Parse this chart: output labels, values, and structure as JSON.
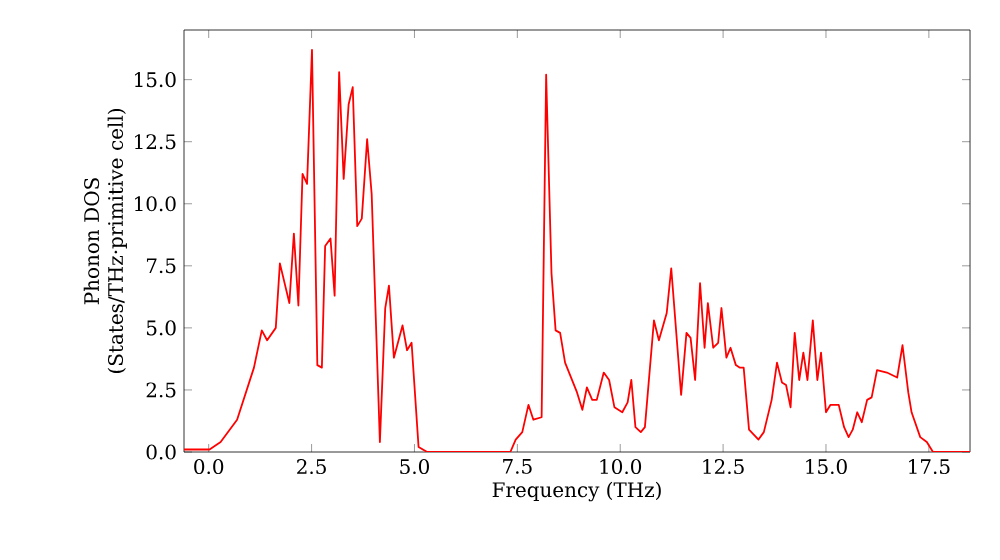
{
  "chart_data": {
    "type": "line",
    "xlabel": "Frequency (THz)",
    "ylabel": "Phonon DOS (States/THz·primitive cell)",
    "xlim": [
      -0.6,
      18.5
    ],
    "ylim": [
      0,
      17
    ],
    "xticks": [
      {
        "value": 0,
        "label": "0.0"
      },
      {
        "value": 2.5,
        "label": "2.5"
      },
      {
        "value": 5,
        "label": "5.0"
      },
      {
        "value": 7.5,
        "label": "7.5"
      },
      {
        "value": 10,
        "label": "10.0"
      },
      {
        "value": 12.5,
        "label": "12.5"
      },
      {
        "value": 15,
        "label": "15.0"
      },
      {
        "value": 17.5,
        "label": "17.5"
      }
    ],
    "yticks": [
      {
        "value": 0,
        "label": "0.0"
      },
      {
        "value": 2.5,
        "label": "2.5"
      },
      {
        "value": 5,
        "label": "5.0"
      },
      {
        "value": 7.5,
        "label": "7.5"
      },
      {
        "value": 10,
        "label": "10.0"
      },
      {
        "value": 12.5,
        "label": "12.5"
      },
      {
        "value": 15,
        "label": "15.0"
      }
    ],
    "grid": false,
    "marker": "none",
    "line_style": "solid",
    "series": [
      {
        "color": "#ff0000",
        "x": [
          -0.6,
          0.02,
          0.29,
          0.69,
          1.1,
          1.29,
          1.42,
          1.63,
          1.73,
          1.96,
          2.07,
          2.18,
          2.28,
          2.39,
          2.51,
          2.64,
          2.75,
          2.83,
          2.96,
          3.06,
          3.17,
          3.28,
          3.4,
          3.5,
          3.61,
          3.72,
          3.85,
          3.96,
          4.16,
          4.29,
          4.38,
          4.5,
          4.71,
          4.82,
          4.93,
          5.1,
          5.31,
          7.33,
          7.46,
          7.62,
          7.77,
          7.89,
          8.09,
          8.2,
          8.33,
          8.43,
          8.54,
          8.66,
          8.95,
          9.08,
          9.19,
          9.32,
          9.43,
          9.6,
          9.73,
          9.86,
          10.05,
          10.18,
          10.27,
          10.37,
          10.5,
          10.6,
          10.82,
          10.94,
          11.13,
          11.24,
          11.48,
          11.61,
          11.71,
          11.82,
          11.94,
          12.05,
          12.13,
          12.26,
          12.38,
          12.46,
          12.58,
          12.68,
          12.81,
          12.9,
          13.0,
          13.13,
          13.36,
          13.49,
          13.68,
          13.81,
          13.93,
          14.03,
          14.14,
          14.24,
          14.35,
          14.45,
          14.55,
          14.68,
          14.79,
          14.88,
          15.0,
          15.11,
          15.31,
          15.44,
          15.55,
          15.65,
          15.76,
          15.87,
          16.0,
          16.11,
          16.24,
          16.48,
          16.73,
          16.86,
          17.0,
          17.08,
          17.29,
          17.45,
          17.6,
          18.5
        ],
        "values": [
          0.1,
          0.1,
          0.4,
          1.3,
          3.4,
          4.9,
          4.5,
          5.0,
          7.6,
          6.0,
          8.8,
          5.9,
          11.2,
          10.8,
          16.2,
          3.5,
          3.4,
          8.3,
          8.6,
          6.3,
          15.3,
          11.0,
          14.0,
          14.7,
          9.1,
          9.4,
          12.6,
          10.4,
          0.4,
          5.8,
          6.7,
          3.8,
          5.1,
          4.1,
          4.4,
          0.2,
          0,
          0,
          0.5,
          0.8,
          1.9,
          1.3,
          1.4,
          15.2,
          7.2,
          4.9,
          4.8,
          3.6,
          2.4,
          1.7,
          2.6,
          2.1,
          2.1,
          3.2,
          2.9,
          1.8,
          1.6,
          2.0,
          2.9,
          1.0,
          0.8,
          1.0,
          5.3,
          4.5,
          5.6,
          7.4,
          2.3,
          4.8,
          4.6,
          2.9,
          6.8,
          4.2,
          6.0,
          4.2,
          4.4,
          5.8,
          3.8,
          4.2,
          3.5,
          3.4,
          3.4,
          0.9,
          0.5,
          0.8,
          2.1,
          3.6,
          2.8,
          2.7,
          1.8,
          4.8,
          2.9,
          4.0,
          2.9,
          5.3,
          2.9,
          4.0,
          1.6,
          1.9,
          1.9,
          1.0,
          0.6,
          0.9,
          1.6,
          1.2,
          2.1,
          2.2,
          3.3,
          3.2,
          3.0,
          4.3,
          2.4,
          1.6,
          0.6,
          0.4,
          0,
          0
        ]
      }
    ]
  }
}
